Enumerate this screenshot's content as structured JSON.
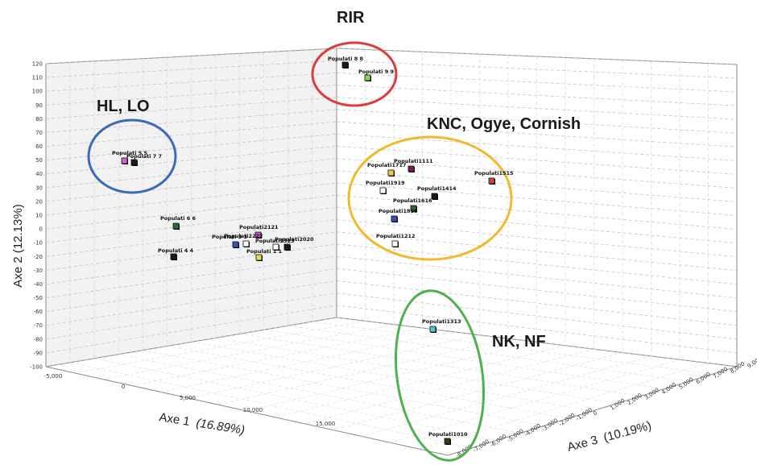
{
  "chart_data": {
    "type": "scatter",
    "projection": "3d",
    "axes": {
      "x": {
        "label": "Axe 1",
        "pct": "(16.89%)",
        "range": [
          -5000,
          20000
        ],
        "ticks": [
          "-5,000",
          "0",
          "5,000",
          "10,000",
          "15,000"
        ]
      },
      "y": {
        "label": "Axe 2 (12.13%)",
        "range": [
          -100,
          120
        ],
        "ticks": [
          "-100",
          "-90",
          "-80",
          "-70",
          "-60",
          "-50",
          "-40",
          "-30",
          "-20",
          "-10",
          "0",
          "10",
          "20",
          "30",
          "40",
          "50",
          "60",
          "70",
          "80",
          "90",
          "100",
          "110",
          "120"
        ]
      },
      "z": {
        "label": "Axe 3",
        "pct": "(10.19%)",
        "range": [
          -8000,
          9000
        ],
        "ticks": [
          "-8,000",
          "-7,000",
          "-6,000",
          "-5,000",
          "-4,000",
          "-3,000",
          "-2,000",
          "-1,000",
          "0",
          "1,000",
          "2,000",
          "3,000",
          "4,000",
          "5,000",
          "6,000",
          "7,000",
          "8,000",
          "9,000"
        ]
      }
    },
    "points": [
      {
        "label": "Populati 8 8",
        "color": "#1a1a1a"
      },
      {
        "label": "Populati 9 9",
        "color": "#8fd14f"
      },
      {
        "label": "Populati 5 5",
        "color": "#cc66cc"
      },
      {
        "label": "Populati 7 7",
        "color": "#1a1a1a"
      },
      {
        "label": "Populati1111",
        "color": "#7a1f5a"
      },
      {
        "label": "Populati1717",
        "color": "#f2c744"
      },
      {
        "label": "Populati1515",
        "color": "#d9433a"
      },
      {
        "label": "Populati1919",
        "color": "#ffffff"
      },
      {
        "label": "Populati1414",
        "color": "#1a1a1a"
      },
      {
        "label": "Populati1616",
        "color": "#2f6b3a"
      },
      {
        "label": "Populati1818",
        "color": "#3a4fc0"
      },
      {
        "label": "Populati1212",
        "color": "#ffffff"
      },
      {
        "label": "Populati 6 6",
        "color": "#2f6b3a"
      },
      {
        "label": "Populati 4 4",
        "color": "#1a1a1a"
      },
      {
        "label": "Populati 3 3",
        "color": "#3a4fc0"
      },
      {
        "label": "Populati2121",
        "color": "#d04fd0"
      },
      {
        "label": "Populati2222",
        "color": "#ffffff"
      },
      {
        "label": "Populati2323",
        "color": "#ffffff"
      },
      {
        "label": "Populati2020",
        "color": "#1a1a1a"
      },
      {
        "label": "Populati 1 1",
        "color": "#e8d94a"
      },
      {
        "label": "Populati1313",
        "color": "#4fc7d9"
      },
      {
        "label": "Populati1010",
        "color": "#3a3a1a"
      }
    ],
    "groups": [
      {
        "label": "RIR",
        "color": "#e03a3a"
      },
      {
        "label": "HL, LO",
        "color": "#3a6bb5"
      },
      {
        "label": "KNC, Ogye, Cornish",
        "color": "#f2b92e"
      },
      {
        "label": "NK, NF",
        "color": "#4fb04f"
      }
    ],
    "grid": true
  }
}
